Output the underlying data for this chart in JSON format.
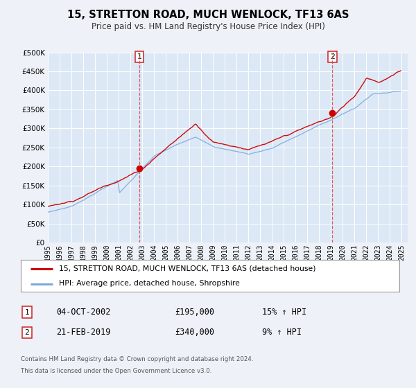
{
  "title": "15, STRETTON ROAD, MUCH WENLOCK, TF13 6AS",
  "subtitle": "Price paid vs. HM Land Registry's House Price Index (HPI)",
  "ylim": [
    0,
    500000
  ],
  "yticks": [
    0,
    50000,
    100000,
    150000,
    200000,
    250000,
    300000,
    350000,
    400000,
    450000,
    500000
  ],
  "xlim_start": 1995.0,
  "xlim_end": 2025.5,
  "background_color": "#eef2f8",
  "plot_bg_color": "#dce8f5",
  "grid_color": "#ffffff",
  "sale1_x": 2002.75,
  "sale1_y": 195000,
  "sale2_x": 2019.12,
  "sale2_y": 340000,
  "dashed_line_color": "#dd4444",
  "house_line_color": "#cc0000",
  "hpi_line_color": "#7aaadd",
  "legend_house": "15, STRETTON ROAD, MUCH WENLOCK, TF13 6AS (detached house)",
  "legend_hpi": "HPI: Average price, detached house, Shropshire",
  "footer1": "Contains HM Land Registry data © Crown copyright and database right 2024.",
  "footer2": "This data is licensed under the Open Government Licence v3.0.",
  "table_row1_num": "1",
  "table_row1_date": "04-OCT-2002",
  "table_row1_price": "£195,000",
  "table_row1_hpi": "15% ↑ HPI",
  "table_row2_num": "2",
  "table_row2_date": "21-FEB-2019",
  "table_row2_price": "£340,000",
  "table_row2_hpi": "9% ↑ HPI"
}
